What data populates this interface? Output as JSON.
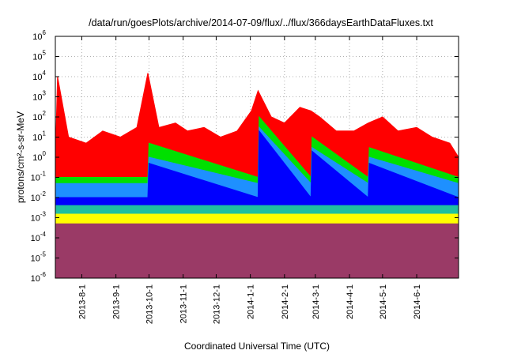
{
  "chart_data": {
    "type": "area",
    "title": "/data/run/goesPlots/archive/2014-07-09/flux/../flux/366daysEarthDataFluxes.txt",
    "xlabel": "Coordinated Universal Time (UTC)",
    "ylabel": "protons/cm²-s-sr-MeV",
    "yscale": "log",
    "ylim": [
      1e-06,
      1000000.0
    ],
    "y_ticks": [
      {
        "value": 1e-06,
        "base": "10",
        "exp": "-6"
      },
      {
        "value": 1e-05,
        "base": "10",
        "exp": "-5"
      },
      {
        "value": 0.0001,
        "base": "10",
        "exp": "-4"
      },
      {
        "value": 0.001,
        "base": "10",
        "exp": "-3"
      },
      {
        "value": 0.01,
        "base": "10",
        "exp": "-2"
      },
      {
        "value": 0.1,
        "base": "10",
        "exp": "-1"
      },
      {
        "value": 1,
        "base": "10",
        "exp": "0"
      },
      {
        "value": 10,
        "base": "10",
        "exp": "1"
      },
      {
        "value": 100,
        "base": "10",
        "exp": "2"
      },
      {
        "value": 1000,
        "base": "10",
        "exp": "3"
      },
      {
        "value": 10000,
        "base": "10",
        "exp": "4"
      },
      {
        "value": 100000,
        "base": "10",
        "exp": "5"
      },
      {
        "value": 1000000,
        "base": "10",
        "exp": "6"
      }
    ],
    "xlim": [
      "2013-07-08",
      "2014-07-09"
    ],
    "x_ticks": [
      {
        "label": "2013-8-1",
        "date": "2013-08-01"
      },
      {
        "label": "2013-9-1",
        "date": "2013-09-01"
      },
      {
        "label": "2013-10-1",
        "date": "2013-10-01"
      },
      {
        "label": "2013-11-1",
        "date": "2013-11-01"
      },
      {
        "label": "2013-12-1",
        "date": "2013-12-01"
      },
      {
        "label": "2014-1-1",
        "date": "2014-01-01"
      },
      {
        "label": "2014-2-1",
        "date": "2014-02-01"
      },
      {
        "label": "2014-3-1",
        "date": "2014-03-01"
      },
      {
        "label": "2014-4-1",
        "date": "2014-04-01"
      },
      {
        "label": "2014-5-1",
        "date": "2014-05-01"
      },
      {
        "label": "2014-6-1",
        "date": "2014-06-01"
      }
    ],
    "grid": true,
    "colors": {
      "channel_red": "#ff0000",
      "channel_green": "#00e000",
      "channel_lightblue": "#1e90ff",
      "channel_blue": "#0000ff",
      "channel_teal": "#20c0a0",
      "channel_yellow": "#ffff00",
      "channel_maroon": "#9a3a66"
    },
    "series": [
      {
        "color": "channel_red",
        "x": [
          "2013-07-08",
          "2013-07-10",
          "2013-07-20",
          "2013-08-05",
          "2013-08-20",
          "2013-09-05",
          "2013-09-20",
          "2013-09-30",
          "2013-10-10",
          "2013-10-25",
          "2013-11-05",
          "2013-11-20",
          "2013-12-05",
          "2013-12-20",
          "2014-01-02",
          "2014-01-08",
          "2014-01-20",
          "2014-02-01",
          "2014-02-15",
          "2014-02-25",
          "2014-03-05",
          "2014-03-20",
          "2014-04-05",
          "2014-04-18",
          "2014-05-01",
          "2014-05-15",
          "2014-06-01",
          "2014-06-15",
          "2014-07-01",
          "2014-07-09"
        ],
        "values": [
          1,
          10000,
          10,
          5,
          20,
          10,
          30,
          15000,
          30,
          50,
          20,
          30,
          10,
          20,
          200,
          2000,
          100,
          50,
          300,
          200,
          100,
          20,
          20,
          50,
          100,
          20,
          30,
          10,
          5,
          1
        ]
      },
      {
        "color": "channel_green",
        "x": [
          "2013-07-08",
          "2013-09-30",
          "2013-10-01",
          "2014-01-08",
          "2014-01-09",
          "2014-02-25",
          "2014-02-26",
          "2014-04-18",
          "2014-04-19",
          "2014-07-09"
        ],
        "values": [
          0.1,
          0.1,
          5,
          0.1,
          100,
          0.1,
          10,
          0.1,
          3,
          0.1
        ]
      },
      {
        "color": "channel_lightblue",
        "x": [
          "2013-07-08",
          "2013-09-30",
          "2013-10-01",
          "2014-01-08",
          "2014-01-09",
          "2014-02-25",
          "2014-02-26",
          "2014-04-18",
          "2014-04-19",
          "2014-07-09"
        ],
        "values": [
          0.05,
          0.05,
          1,
          0.05,
          30,
          0.05,
          3,
          0.05,
          1,
          0.05
        ]
      },
      {
        "color": "channel_blue",
        "x": [
          "2013-07-08",
          "2013-09-30",
          "2013-10-01",
          "2014-01-08",
          "2014-01-09",
          "2014-02-25",
          "2014-02-26",
          "2014-04-18",
          "2014-04-19",
          "2014-07-09"
        ],
        "values": [
          0.01,
          0.01,
          0.5,
          0.01,
          20,
          0.01,
          2,
          0.01,
          0.5,
          0.01
        ]
      },
      {
        "color": "channel_teal",
        "x": [
          "2013-07-08",
          "2014-07-09"
        ],
        "values": [
          0.004,
          0.004
        ]
      },
      {
        "color": "channel_yellow",
        "x": [
          "2013-07-08",
          "2014-07-09"
        ],
        "values": [
          0.0015,
          0.0015
        ]
      },
      {
        "color": "channel_maroon",
        "x": [
          "2013-07-08",
          "2014-07-09"
        ],
        "values": [
          0.0005,
          0.0005
        ]
      }
    ]
  }
}
